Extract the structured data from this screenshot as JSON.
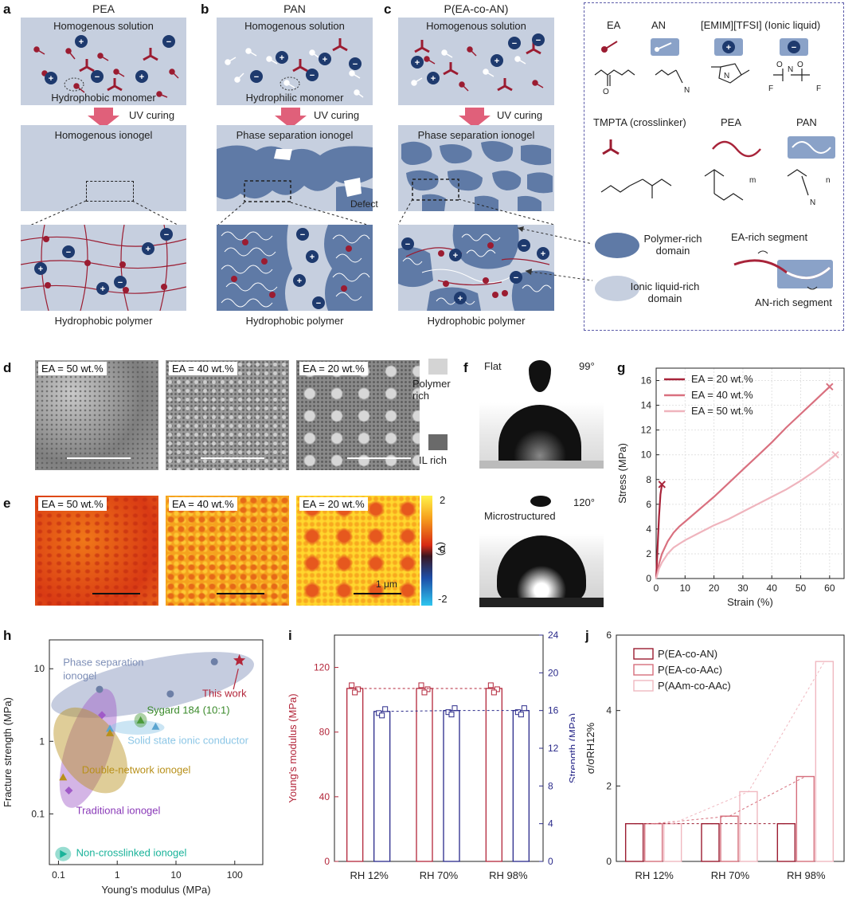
{
  "panel_labels": {
    "a": "a",
    "b": "b",
    "c": "c",
    "d": "d",
    "e": "e",
    "f": "f",
    "g": "g",
    "h": "h",
    "i": "i",
    "j": "j"
  },
  "schematics": {
    "a": {
      "title": "PEA",
      "solution": "Homogenous solution",
      "monomer": "Hydrophobic monomer",
      "gel": "Homogenous ionogel",
      "polymer": "Hydrophobic polymer"
    },
    "b": {
      "title": "PAN",
      "solution": "Homogenous solution",
      "monomer": "Hydrophilic monomer",
      "gel": "Phase separation ionogel",
      "defect": "Defect",
      "polymer": "Hydrophobic polymer"
    },
    "c": {
      "title": "P(EA-co-AN)",
      "solution": "Homogenous solution",
      "gel": "Phase separation ionogel",
      "polymer": "Hydrophobic polymer"
    },
    "uv_curing": "UV curing"
  },
  "legend": {
    "ea": "EA",
    "an": "AN",
    "ionic_liquid": "[EMIM][TFSI] (Ionic liquid)",
    "tmpta": "TMPTA (crosslinker)",
    "pea": "PEA",
    "pan": "PAN",
    "polymer_rich": "Polymer-rich domain",
    "il_rich": "Ionic liquid-rich domain",
    "ea_segment": "EA-rich segment",
    "an_segment": "AN-rich segment"
  },
  "panel_d": {
    "labels": [
      "EA = 50 wt.%",
      "EA = 40 wt.%",
      "EA = 20 wt.%"
    ],
    "polymer_rich": "Polymer rich",
    "il_rich": "IL rich"
  },
  "panel_e": {
    "labels": [
      "EA = 50 wt.%",
      "EA = 40 wt.%",
      "EA = 20 wt.%"
    ],
    "scale": "1 μm",
    "cbar_ticks": [
      "2",
      "0",
      "-2"
    ],
    "cbar_unit": "(V)"
  },
  "panel_f": {
    "flat": "Flat",
    "flat_angle": "99°",
    "micro": "Microstructured",
    "micro_angle": "120°"
  },
  "colors": {
    "panel_bg": "#c6cfdf",
    "domain": "#5f7aa6",
    "ea_red": "#9b1c31",
    "ion": "#1e3a6e",
    "legend_border": "#5a5aa8"
  },
  "chart_data": [
    {
      "id": "g",
      "type": "line",
      "xlabel": "Strain (%)",
      "ylabel": "Stress (MPa)",
      "xlim": [
        0,
        65
      ],
      "ylim": [
        0,
        17
      ],
      "xticks": [
        "0",
        "10",
        "20",
        "30",
        "40",
        "50",
        "60"
      ],
      "yticks": [
        "0",
        "2",
        "4",
        "6",
        "8",
        "10",
        "12",
        "14",
        "16"
      ],
      "legend_position": "top-left",
      "series": [
        {
          "name": "EA = 20 wt.%",
          "color": "#a8243a",
          "x": [
            0,
            0.5,
            1.0,
            1.5,
            2.0
          ],
          "y": [
            0,
            2.5,
            5.0,
            6.8,
            7.6
          ]
        },
        {
          "name": "EA = 40 wt.%",
          "color": "#d9707f",
          "x": [
            0,
            1,
            2,
            4,
            6,
            8,
            10,
            15,
            20,
            25,
            30,
            35,
            40,
            45,
            50,
            55,
            60
          ],
          "y": [
            0,
            1.2,
            2.0,
            3.0,
            3.7,
            4.2,
            4.6,
            5.6,
            6.6,
            7.7,
            8.8,
            9.9,
            11.0,
            12.2,
            13.3,
            14.4,
            15.5
          ]
        },
        {
          "name": "EA = 50 wt.%",
          "color": "#efb4bd",
          "x": [
            0,
            1,
            2,
            4,
            6,
            8,
            10,
            15,
            20,
            25,
            30,
            35,
            40,
            45,
            50,
            55,
            60,
            62
          ],
          "y": [
            0,
            0.8,
            1.3,
            2.0,
            2.5,
            2.8,
            3.1,
            3.7,
            4.3,
            4.8,
            5.4,
            6.0,
            6.6,
            7.2,
            7.9,
            8.7,
            9.6,
            10.0
          ]
        }
      ]
    },
    {
      "id": "h",
      "type": "scatter",
      "xlabel": "Young's modulus (MPa)",
      "ylabel": "Fracture strength (MPa)",
      "xscale": "log",
      "yscale": "log",
      "xticks": [
        "0.1",
        "1",
        "10",
        "100"
      ],
      "yticks": [
        "0.1",
        "1",
        "10"
      ],
      "xlim": [
        0.07,
        300
      ],
      "ylim": [
        0.02,
        25
      ],
      "groups": [
        {
          "name": "Phase separation ionogel",
          "color": "#7e8fb7"
        },
        {
          "name": "Sygard 184 (10:1)",
          "color": "#4a9a3a"
        },
        {
          "name": "Solid state ionic conductor",
          "color": "#8cc6e6"
        },
        {
          "name": "Double-network ionogel",
          "color": "#b8901a"
        },
        {
          "name": "Traditional ionogel",
          "color": "#a05ac8"
        },
        {
          "name": "Non-crosslinked ionogel",
          "color": "#1ab39a"
        },
        {
          "name": "This work",
          "color": "#b3263a"
        }
      ],
      "points": [
        {
          "group": "Phase separation ionogel",
          "x": 0.5,
          "y": 5.2
        },
        {
          "group": "Phase separation ionogel",
          "x": 8,
          "y": 4.5
        },
        {
          "group": "Phase separation ionogel",
          "x": 45,
          "y": 12.5
        },
        {
          "group": "Sygard 184 (10:1)",
          "x": 2.5,
          "y": 1.95
        },
        {
          "group": "Solid state ionic conductor",
          "x": 4.5,
          "y": 1.6
        },
        {
          "group": "Solid state ionic conductor",
          "x": 0.75,
          "y": 1.5
        },
        {
          "group": "Double-network ionogel",
          "x": 0.12,
          "y": 0.32
        },
        {
          "group": "Double-network ionogel",
          "x": 0.75,
          "y": 1.3
        },
        {
          "group": "Traditional ionogel",
          "x": 0.15,
          "y": 0.21
        },
        {
          "group": "Traditional ionogel",
          "x": 0.55,
          "y": 2.3
        },
        {
          "group": "Non-crosslinked ionogel",
          "x": 0.12,
          "y": 0.028
        },
        {
          "group": "This work",
          "x": 120,
          "y": 13
        }
      ]
    },
    {
      "id": "i",
      "type": "bar",
      "categories": [
        "RH 12%",
        "RH 70%",
        "RH 98%"
      ],
      "ylabel": "Young's modulus (MPa)",
      "ylim": [
        0,
        140
      ],
      "yticks": [
        "0",
        "40",
        "80",
        "120"
      ],
      "y2label": "Strength (MPa)",
      "y2lim": [
        0,
        24
      ],
      "y2ticks": [
        "0",
        "4",
        "8",
        "12",
        "16",
        "20",
        "24"
      ],
      "series": [
        {
          "name": "Young's modulus",
          "axis": "left",
          "color": "#b3263a",
          "values": [
            107,
            107,
            107
          ]
        },
        {
          "name": "Strength",
          "axis": "right",
          "color": "#2a2a8a",
          "values": [
            15.9,
            16.0,
            16.0
          ]
        }
      ]
    },
    {
      "id": "j",
      "type": "bar",
      "categories": [
        "RH 12%",
        "RH 70%",
        "RH 98%"
      ],
      "ylabel": "σ/σRH12%",
      "ylim": [
        0,
        6
      ],
      "yticks": [
        "0",
        "2",
        "4",
        "6"
      ],
      "legend_position": "top-left",
      "series": [
        {
          "name": "P(EA-co-AN)",
          "color": "#9b1c31",
          "values": [
            1.0,
            1.0,
            1.0
          ]
        },
        {
          "name": "P(EA-co-AAc)",
          "color": "#d56e7c",
          "values": [
            1.0,
            1.2,
            2.25
          ]
        },
        {
          "name": "P(AAm-co-AAc)",
          "color": "#f0b8c0",
          "values": [
            1.0,
            1.85,
            5.3
          ]
        }
      ]
    }
  ]
}
